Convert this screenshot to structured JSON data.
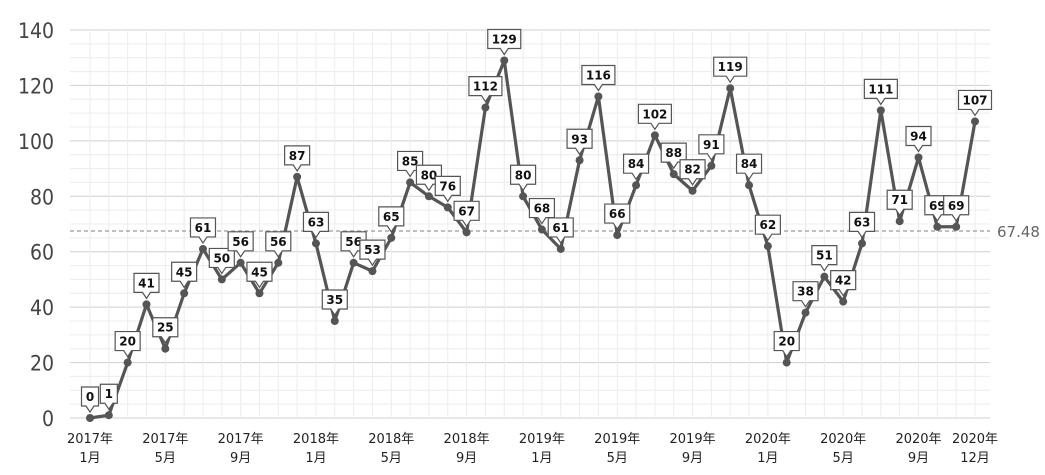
{
  "chart_data": {
    "type": "line",
    "title": "",
    "xlabel": "",
    "ylabel": "",
    "ylim": [
      0,
      140
    ],
    "yticks": [
      0,
      20,
      40,
      60,
      80,
      100,
      120,
      140
    ],
    "grid": true,
    "line_color": "#555555",
    "point_color": "#555555",
    "average": {
      "value": 67.48,
      "label": "67.48"
    },
    "x_tick_labels": [
      {
        "index": 0,
        "line1": "2017年",
        "line2": "1月"
      },
      {
        "index": 4,
        "line1": "2017年",
        "line2": "5月"
      },
      {
        "index": 8,
        "line1": "2017年",
        "line2": "9月"
      },
      {
        "index": 12,
        "line1": "2018年",
        "line2": "1月"
      },
      {
        "index": 16,
        "line1": "2018年",
        "line2": "5月"
      },
      {
        "index": 20,
        "line1": "2018年",
        "line2": "9月"
      },
      {
        "index": 24,
        "line1": "2019年",
        "line2": "1月"
      },
      {
        "index": 28,
        "line1": "2019年",
        "line2": "5月"
      },
      {
        "index": 32,
        "line1": "2019年",
        "line2": "9月"
      },
      {
        "index": 36,
        "line1": "2020年",
        "line2": "1月"
      },
      {
        "index": 40,
        "line1": "2020年",
        "line2": "5月"
      },
      {
        "index": 44,
        "line1": "2020年",
        "line2": "9月"
      },
      {
        "index": 47,
        "line1": "2020年",
        "line2": "12月"
      }
    ],
    "x": [
      "2017-01",
      "2017-02",
      "2017-03",
      "2017-04",
      "2017-05",
      "2017-06",
      "2017-07",
      "2017-08",
      "2017-09",
      "2017-10",
      "2017-11",
      "2017-12",
      "2018-01",
      "2018-02",
      "2018-03",
      "2018-04",
      "2018-05",
      "2018-06",
      "2018-07",
      "2018-08",
      "2018-09",
      "2018-10",
      "2018-11",
      "2018-12",
      "2019-01",
      "2019-02",
      "2019-03",
      "2019-04",
      "2019-05",
      "2019-06",
      "2019-07",
      "2019-08",
      "2019-09",
      "2019-10",
      "2019-11",
      "2019-12",
      "2020-01",
      "2020-02",
      "2020-03",
      "2020-04",
      "2020-05",
      "2020-06",
      "2020-07",
      "2020-08",
      "2020-09",
      "2020-10",
      "2020-11",
      "2020-12"
    ],
    "values": [
      0,
      1,
      20,
      41,
      25,
      45,
      61,
      50,
      56,
      45,
      56,
      87,
      63,
      35,
      56,
      53,
      65,
      85,
      80,
      76,
      67,
      112,
      129,
      80,
      68,
      61,
      93,
      116,
      66,
      84,
      102,
      88,
      82,
      91,
      119,
      84,
      62,
      20,
      38,
      51,
      42,
      63,
      111,
      71,
      94,
      69,
      69,
      107
    ],
    "labeled": [
      true,
      true,
      true,
      true,
      true,
      true,
      true,
      true,
      true,
      true,
      true,
      true,
      true,
      true,
      true,
      true,
      true,
      true,
      true,
      true,
      true,
      true,
      true,
      true,
      true,
      true,
      true,
      true,
      true,
      true,
      true,
      true,
      true,
      true,
      true,
      true,
      true,
      true,
      true,
      true,
      true,
      true,
      true,
      true,
      true,
      true,
      true,
      true
    ]
  }
}
